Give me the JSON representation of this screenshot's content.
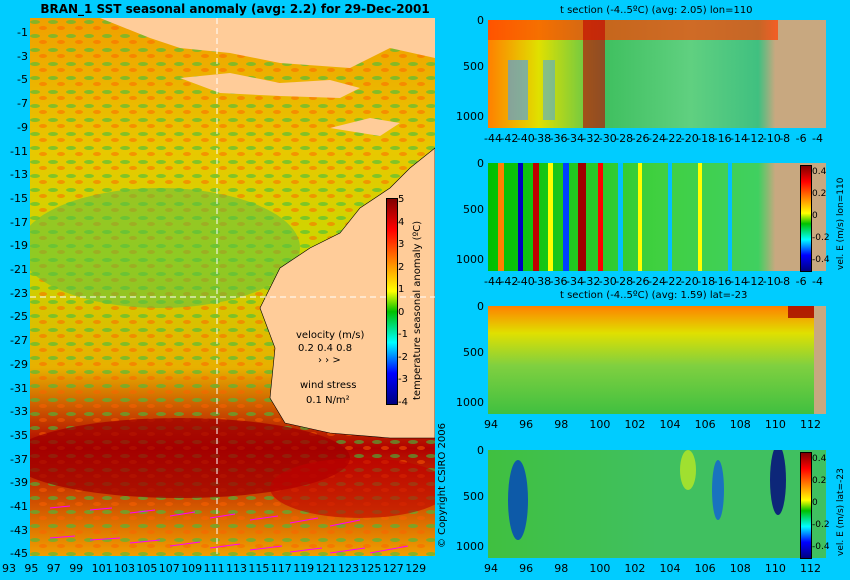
{
  "map": {
    "title": "BRAN_1  SST seasonal anomaly  (avg: 2.2)  for 29-Dec-2001",
    "y_ticks": [
      "-1",
      "-3",
      "-5",
      "-7",
      "-9",
      "-11",
      "-13",
      "-15",
      "-17",
      "-19",
      "-21",
      "-23",
      "-25",
      "-27",
      "-29",
      "-31",
      "-33",
      "-35",
      "-37",
      "-39",
      "-41",
      "-43",
      "-45"
    ],
    "x_ticks": [
      "93",
      "95",
      "97",
      "99",
      "101",
      "103",
      "105",
      "107",
      "109",
      "111",
      "113",
      "115",
      "117",
      "119",
      "121",
      "123",
      "125",
      "127",
      "129"
    ],
    "colorbar_ticks": [
      "5",
      "4",
      "3",
      "2",
      "1",
      "0",
      "-1",
      "-2",
      "-3",
      "-4"
    ],
    "colorbar_label": "temperature seasonal anomaly (ºC)",
    "velocity_label": "velocity (m/s)",
    "velocity_scale": "0.2 0.4 0.8",
    "wind_label": "wind stress",
    "wind_scale": "0.1 N/m²",
    "copyright": "© Copyright CSIRO 2006",
    "colors": {
      "land": "#ffcc99",
      "background": "#00ccff",
      "arrows": "#ff00ff"
    }
  },
  "panels": [
    {
      "title": "t section (-4..5ºC)  (avg: 2.05) lon=110",
      "y_ticks": [
        "0",
        "500",
        "1000"
      ],
      "x_ticks": [
        "-44",
        "-42",
        "-40",
        "-38",
        "-36",
        "-34",
        "-32",
        "-30",
        "-28",
        "-26",
        "-24",
        "-22",
        "-20",
        "-18",
        "-16",
        "-14",
        "-12",
        "-10",
        "-8",
        "-6",
        "-4"
      ]
    },
    {
      "title": "",
      "y_ticks": [
        "0",
        "500",
        "1000"
      ],
      "x_ticks": [
        "-44",
        "-42",
        "-40",
        "-38",
        "-36",
        "-34",
        "-32",
        "-30",
        "-28",
        "-26",
        "-24",
        "-22",
        "-20",
        "-18",
        "-16",
        "-14",
        "-12",
        "-10",
        "-8",
        "-6",
        "-4"
      ],
      "cb_ticks": [
        "0.4",
        "0.2",
        "0",
        "-0.2",
        "-0.4"
      ],
      "cb_label": "vel. E (m/s) lon=110"
    },
    {
      "title": "t section (-4..5ºC)  (avg: 1.59) lat=-23",
      "y_ticks": [
        "0",
        "500",
        "1000"
      ],
      "x_ticks": [
        "94",
        "96",
        "98",
        "100",
        "102",
        "104",
        "106",
        "108",
        "110",
        "112"
      ]
    },
    {
      "title": "",
      "y_ticks": [
        "0",
        "500",
        "1000"
      ],
      "x_ticks": [
        "94",
        "96",
        "98",
        "100",
        "102",
        "104",
        "106",
        "108",
        "110",
        "112"
      ],
      "cb_ticks": [
        "0.4",
        "0.2",
        "0",
        "-0.2",
        "-0.4"
      ],
      "cb_label": "vel. E (m/s) lat=-23"
    }
  ]
}
